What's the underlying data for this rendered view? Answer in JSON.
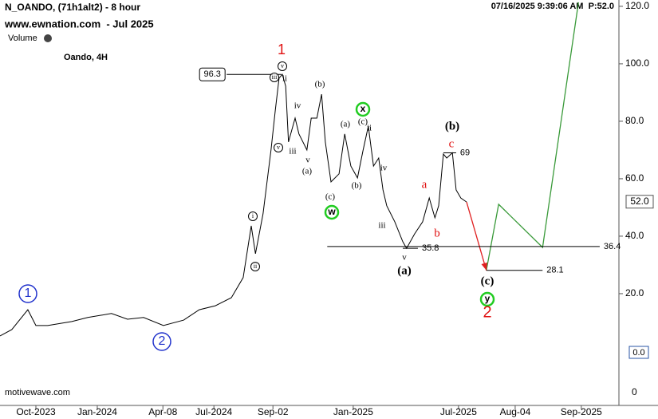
{
  "chart_data": {
    "type": "line",
    "title": "N_OANDO, (71h1alt2) - 8 hour",
    "subtitle": "www.ewnation.com  - Jul 2025",
    "volume_label": "Volume",
    "instrument": "Oando, 4H",
    "timestamp": "07/16/2025 9:39:06 AM  P:52.0",
    "watermark": "motivewave.com",
    "xlim": [
      0,
      130.9
    ],
    "xticks": [
      {
        "value": 7.6,
        "label": "Oct-2023"
      },
      {
        "value": 20.6,
        "label": "Jan-2024"
      },
      {
        "value": 34.5,
        "label": "Apr-08"
      },
      {
        "value": 45.3,
        "label": "Jul-2024"
      },
      {
        "value": 57.8,
        "label": "Sep-02"
      },
      {
        "value": 74.8,
        "label": "Jan-2025"
      },
      {
        "value": 97.1,
        "label": "Jul-2025"
      },
      {
        "value": 109.1,
        "label": "Aug-04"
      },
      {
        "value": 123.1,
        "label": "Sep-2025"
      }
    ],
    "ylim": [
      -18.9,
      122.2
    ],
    "yticks": [
      {
        "value": 20,
        "label": "20.0"
      },
      {
        "value": 40,
        "label": "40.0"
      },
      {
        "value": 60,
        "label": "60.0"
      },
      {
        "value": 80,
        "label": "80.0"
      },
      {
        "value": 100,
        "label": "100.0"
      },
      {
        "value": 120,
        "label": "120.0"
      }
    ],
    "last_price": {
      "value": 52,
      "label": "52.0"
    },
    "volume": {
      "last": "0.0",
      "ticks": [
        0
      ]
    },
    "series": [
      {
        "color": "#000000",
        "x": [
          0,
          2.5,
          5.9,
          7.6,
          10.1,
          15.2,
          18.6,
          23.6,
          27.0,
          30.4,
          34.6,
          38.9,
          42.2,
          45.6,
          49.0,
          51.5,
          53.2,
          54.1,
          55.7,
          57.4,
          58.3,
          59.1,
          59.8,
          60.5,
          61.1,
          62.5,
          63.3,
          65.0,
          65.9,
          67.1,
          68.1,
          68.9,
          70.1,
          71.8,
          73.0,
          74.3,
          75.7,
          76.9,
          78.0,
          79.1,
          80.2,
          81.1,
          81.9,
          83.6,
          85.3,
          86.1,
          87.8,
          89.5,
          90.9,
          92.1,
          92.9,
          93.9,
          94.6,
          95.8,
          96.6,
          97.6,
          98.8
        ],
        "values": [
          5.3,
          7.5,
          14.4,
          8.9,
          8.9,
          10.3,
          11.7,
          13.1,
          11.1,
          11.7,
          8.9,
          10.8,
          14.4,
          15.8,
          18.6,
          25.6,
          43.6,
          33.9,
          47.8,
          70.0,
          83.9,
          95.0,
          96.3,
          92.2,
          72.8,
          81.1,
          75.6,
          70.0,
          81.1,
          81.1,
          89.4,
          72.8,
          58.9,
          61.7,
          75.6,
          64.4,
          60.3,
          70.0,
          78.3,
          64.4,
          67.2,
          56.1,
          50.6,
          45.0,
          38.1,
          35.8,
          40.8,
          45.0,
          53.3,
          46.4,
          50.6,
          68.6,
          67.2,
          69.0,
          56.1,
          53.3,
          51.9
        ]
      },
      {
        "color": "#3a9a3a",
        "x": [
          103.0,
          105.6,
          114.9,
          122.5
        ],
        "values": [
          28.1,
          51.1,
          36.1,
          121.4
        ]
      },
      {
        "color": "#e02020",
        "x": [
          98.8,
          103.0
        ],
        "values": [
          51.9,
          28.1
        ],
        "arrow": true
      }
    ],
    "levels": [
      {
        "value": 96.3,
        "x": [
          48.0,
          59.6
        ],
        "boxed": true
      },
      {
        "value": 69.0,
        "x": [
          93.9,
          96.6
        ]
      },
      {
        "value": 36.4,
        "x": [
          69.3,
          127.0
        ]
      },
      {
        "value": 35.8,
        "x": [
          85.3,
          88.5
        ]
      },
      {
        "value": 28.1,
        "x": [
          103.0,
          114.9
        ]
      }
    ],
    "annotations": [
      "1",
      "v",
      "iii",
      "ii",
      "iv",
      "(b)",
      "x",
      "(a)",
      "(c)",
      "ii",
      "iv",
      "(b)",
      "iii",
      "v",
      "(a)",
      "iii",
      "v",
      "(a)",
      "(c)",
      "w",
      "v",
      "i",
      "ii",
      "(b)",
      "c",
      "a",
      "b",
      "(c)",
      "y",
      "2",
      "1",
      "2"
    ]
  }
}
